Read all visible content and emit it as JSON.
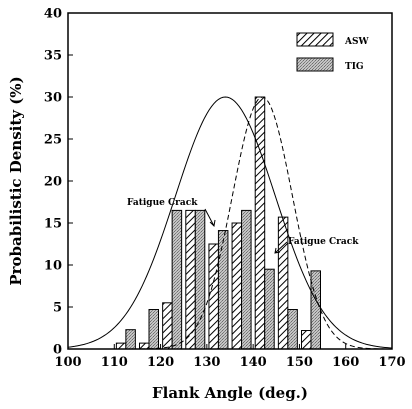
{
  "chart_data": {
    "type": "bar",
    "title": "",
    "xlabel": "Flank  Angle (deg.)",
    "ylabel": "Probabilistic  Density (%)",
    "xlim": [
      100,
      170
    ],
    "ylim": [
      0,
      40
    ],
    "xticks": [
      "100",
      "110",
      "120",
      "130",
      "140",
      "150",
      "160",
      "170"
    ],
    "yticks": [
      "0",
      "5",
      "10",
      "15",
      "20",
      "25",
      "30",
      "35",
      "40"
    ],
    "bin_centers": [
      112.5,
      117.5,
      122.5,
      127.5,
      132.5,
      137.5,
      142.5,
      147.5,
      152.5
    ],
    "series": [
      {
        "name": "ASW",
        "pattern": "diagonal-hatch",
        "values": [
          0.7,
          0.7,
          5.5,
          16.5,
          12.5,
          15.0,
          30.0,
          15.7,
          2.2
        ]
      },
      {
        "name": "TIG",
        "pattern": "gray-fill",
        "values": [
          2.3,
          4.7,
          16.5,
          16.5,
          14.1,
          16.5,
          9.5,
          4.7,
          9.3
        ]
      }
    ],
    "fit_curves": [
      {
        "series": "ASW",
        "style": "dashed",
        "mean": 142,
        "peak": 30.0,
        "sigma": 6.5
      },
      {
        "series": "TIG",
        "style": "solid",
        "mean": 134,
        "peak": 30.0,
        "sigma": 10.8
      }
    ],
    "annotations": [
      {
        "text": "Fatigue Crack",
        "x": 130,
        "y": 14
      },
      {
        "text": "Fatigue Crack",
        "x": 144,
        "y": 10
      }
    ],
    "legend": {
      "position": "top-right",
      "entries": [
        "ASW",
        "TIG"
      ]
    },
    "grid": false
  }
}
